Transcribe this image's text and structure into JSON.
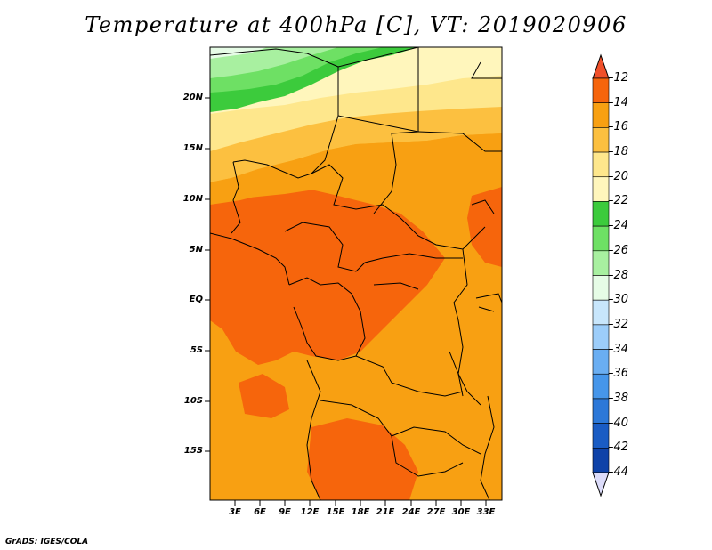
{
  "title": "Temperature at 400hPa [C], VT: 2019020906",
  "credit": "GrADS: IGES/COLA",
  "map": {
    "lat_labels": [
      "20N",
      "15N",
      "10N",
      "5N",
      "EQ",
      "5S",
      "10S",
      "15S"
    ],
    "lon_labels": [
      "3E",
      "6E",
      "9E",
      "12E",
      "15E",
      "18E",
      "21E",
      "24E",
      "27E",
      "30E",
      "33E"
    ]
  },
  "colorbar": {
    "labels": [
      "-12",
      "-14",
      "-16",
      "-18",
      "-20",
      "-22",
      "-24",
      "-26",
      "-28",
      "-30",
      "-32",
      "-34",
      "-36",
      "-38",
      "-40",
      "-42",
      "-44"
    ],
    "colors": [
      "#f0502a",
      "#f6650c",
      "#f8a012",
      "#fcc040",
      "#fee78c",
      "#fff6bc",
      "#3ccb3c",
      "#6ee064",
      "#a8f0a0",
      "#e6fce6",
      "#c8e6fc",
      "#9ccdfa",
      "#6aaef2",
      "#4696ea",
      "#2c78d8",
      "#1a5cc4",
      "#0e42a8",
      "#060a6e",
      "#dcdcfa"
    ]
  }
}
